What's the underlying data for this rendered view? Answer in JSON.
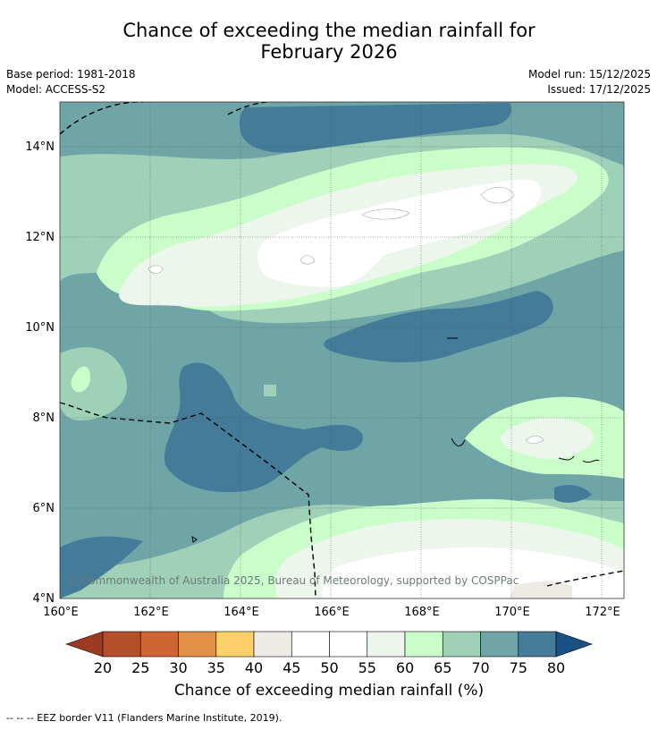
{
  "title": {
    "line1": "Chance of exceeding the median rainfall for",
    "line2": "February 2026"
  },
  "info": {
    "base_period": "Base period: 1981-2018",
    "model": "Model: ACCESS-S2",
    "model_run": "Model run: 15/12/2025",
    "issued": "Issued: 17/12/2025"
  },
  "map": {
    "lon_ticks": [
      "160°E",
      "162°E",
      "164°E",
      "166°E",
      "168°E",
      "170°E",
      "172°E"
    ],
    "lat_ticks": [
      "14°N",
      "12°N",
      "10°N",
      "8°N",
      "6°N",
      "4°N"
    ],
    "lon_range": [
      160,
      172.5
    ],
    "lat_range": [
      4,
      15
    ],
    "copyright": "© Commonwealth of Australia 2025, Bureau of Meteorology, supported by COSPPac"
  },
  "colorbar": {
    "labels": [
      "20",
      "25",
      "30",
      "35",
      "40",
      "45",
      "50",
      "55",
      "60",
      "65",
      "70",
      "75",
      "80"
    ],
    "colors": [
      "#b34f2a",
      "#cf6533",
      "#e29246",
      "#fdd06b",
      "#eeebe6",
      "#ffffff",
      "#ffffff",
      "#edf6ec",
      "#cbfdcb",
      "#9ed1b7",
      "#6fa5a7",
      "#437b98"
    ],
    "low_color": "#9c3a22",
    "high_color": "#1b5085",
    "title": "Chance of exceeding median rainfall (%)"
  },
  "footnote": "--  --  -- EEZ border V11 (Flanders Marine Institute, 2019)."
}
